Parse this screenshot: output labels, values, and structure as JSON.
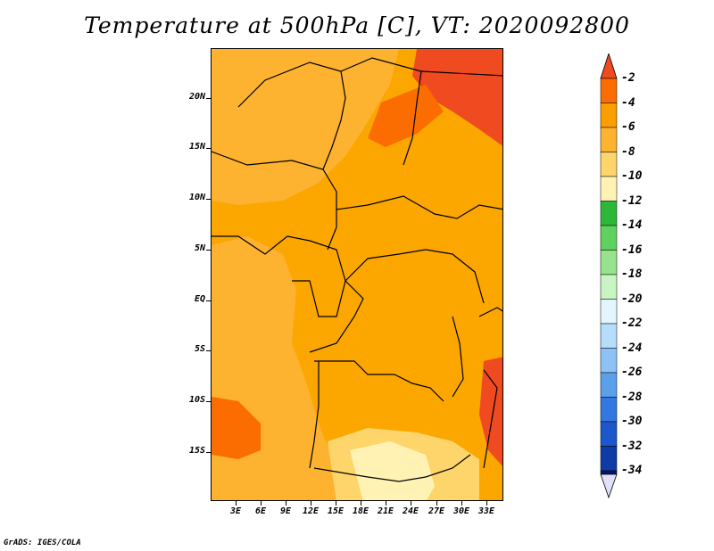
{
  "title": "Temperature at 500hPa [C], VT: 2020092800",
  "credit": "GrADS: IGES/COLA",
  "lat_labels": [
    "20N",
    "15N",
    "10N",
    "5N",
    "EQ",
    "5S",
    "10S",
    "15S"
  ],
  "lon_labels": [
    "3E",
    "6E",
    "9E",
    "12E",
    "15E",
    "18E",
    "21E",
    "24E",
    "27E",
    "30E",
    "33E"
  ],
  "colorbar": {
    "labels": [
      "-2",
      "-4",
      "-6",
      "-8",
      "-10",
      "-12",
      "-14",
      "-16",
      "-18",
      "-20",
      "-22",
      "-24",
      "-26",
      "-28",
      "-30",
      "-32",
      "-34"
    ],
    "colors": [
      "#f04a20",
      "#fb6d00",
      "#fb9e00",
      "#fdb230",
      "#fdd56a",
      "#fff2b3",
      "#2eb83a",
      "#5fd15f",
      "#97e38d",
      "#c8f5c3",
      "#e3f6fe",
      "#b7ddfd",
      "#8cc2f6",
      "#5ba0ea",
      "#3378e2",
      "#1d57cc",
      "#0f3ba6",
      "#0a146b",
      "#e1e0fb"
    ]
  },
  "map": {
    "background": "#fca600",
    "regions": [
      {
        "name": "north-light-band",
        "color": "#fdb230"
      },
      {
        "name": "northeast-warm-patch",
        "color": "#f04a20"
      },
      {
        "name": "northeast-warm-streak",
        "color": "#fb6d00"
      },
      {
        "name": "west-ocean-cool",
        "color": "#fdb230"
      },
      {
        "name": "southwest-warm-patch",
        "color": "#fb6d00"
      },
      {
        "name": "south-cool-patch",
        "color": "#fdd56a"
      },
      {
        "name": "south-coolest-patch",
        "color": "#fff2b3"
      },
      {
        "name": "east-coast-warm",
        "color": "#f04a20"
      }
    ]
  }
}
